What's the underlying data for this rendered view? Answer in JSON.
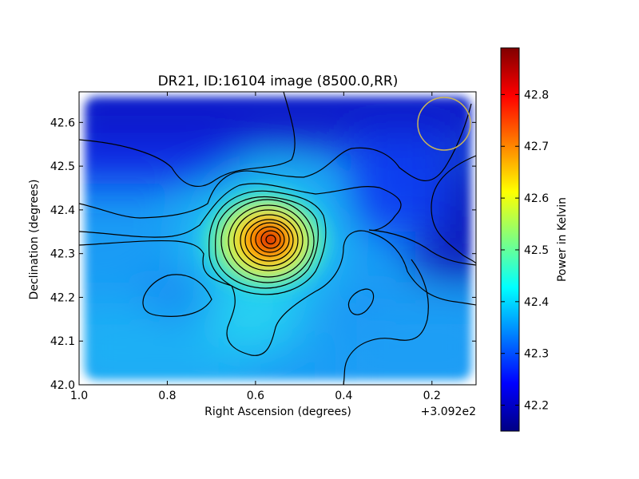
{
  "chart_data": {
    "type": "heatmap",
    "title": "DR21, ID:16104 image (8500.0,RR)",
    "xlabel": "Right Ascension (degrees)",
    "ylabel": "Declination (degrees)",
    "x_offset_label": "+3.092e2",
    "xlim": [
      1.0,
      0.1
    ],
    "ylim": [
      42.0,
      42.67
    ],
    "x_ticks": [
      1.0,
      0.8,
      0.6,
      0.4,
      0.2
    ],
    "x_tick_labels": [
      "1.0",
      "0.8",
      "0.6",
      "0.4",
      "0.2"
    ],
    "y_ticks": [
      42.0,
      42.1,
      42.2,
      42.3,
      42.4,
      42.5,
      42.6
    ],
    "y_tick_labels": [
      "42.0",
      "42.1",
      "42.2",
      "42.3",
      "42.4",
      "42.5",
      "42.6"
    ],
    "colorbar": {
      "label": "Power in Kelvin",
      "range": [
        42.15,
        42.89
      ],
      "ticks": [
        42.2,
        42.3,
        42.4,
        42.5,
        42.6,
        42.7,
        42.8
      ],
      "tick_labels": [
        "42.2",
        "42.3",
        "42.4",
        "42.5",
        "42.6",
        "42.7",
        "42.8"
      ],
      "colormap": "jet"
    },
    "peak": {
      "ra": 0.57,
      "dec": 42.325,
      "value": 42.89
    },
    "beam_circle": {
      "ra": 0.17,
      "dec": 42.595,
      "radius_deg": 0.06,
      "color": "#c8b45a"
    }
  }
}
